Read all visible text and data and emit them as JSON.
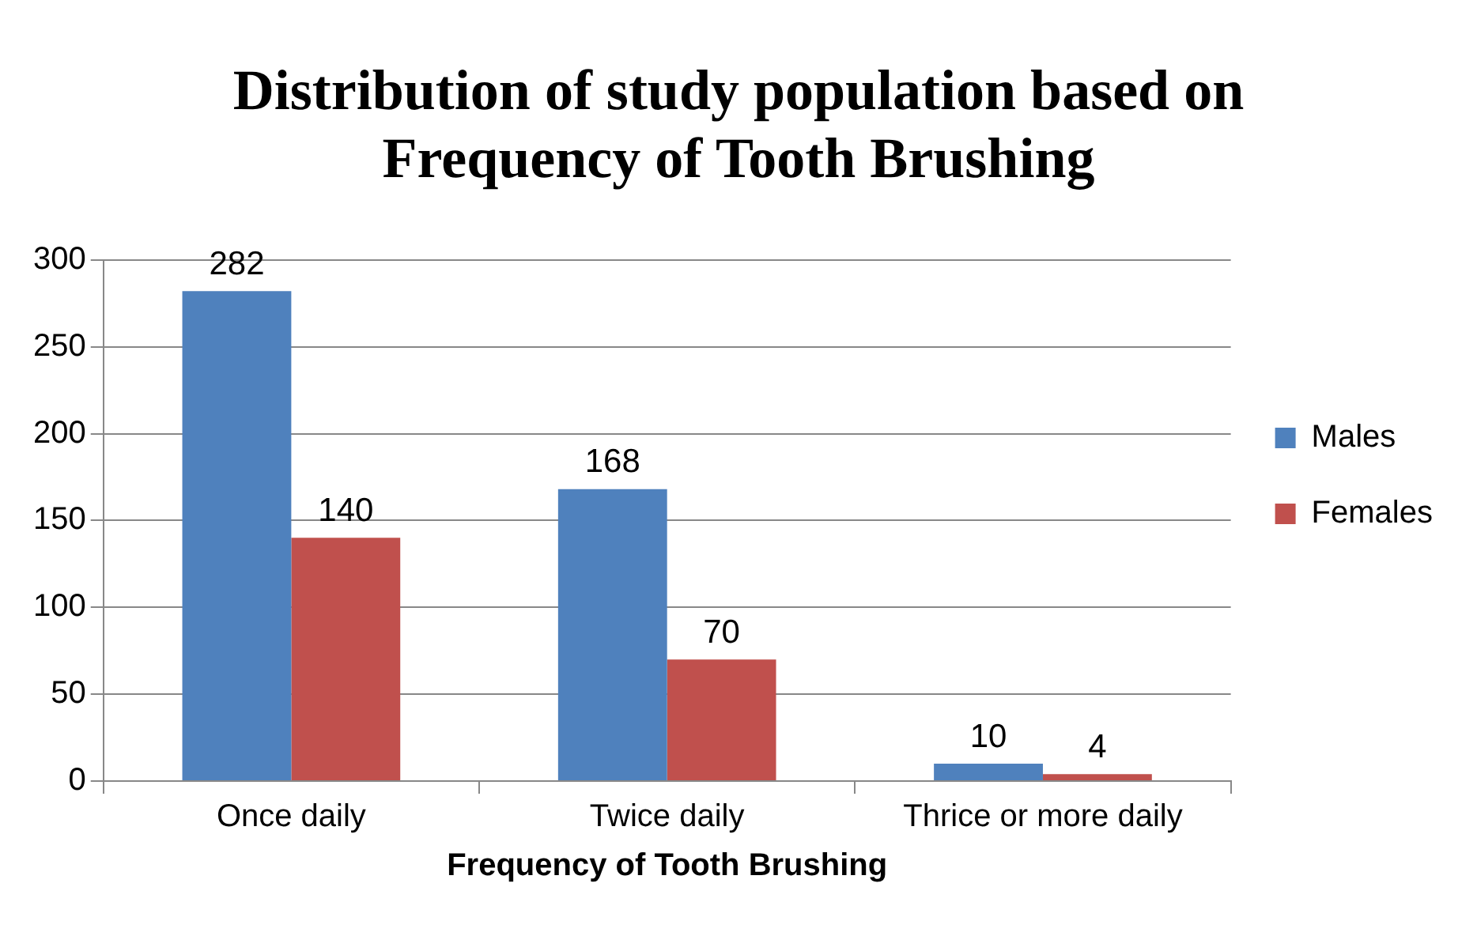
{
  "chart_data": {
    "type": "bar",
    "title": "Distribution of study population based on\nFrequency of Tooth Brushing",
    "xlabel": "Frequency of Tooth Brushing",
    "categories": [
      "Once daily",
      "Twice daily",
      "Thrice or more daily"
    ],
    "series": [
      {
        "name": "Males",
        "color": "#4f81bd",
        "values": [
          282,
          168,
          10
        ]
      },
      {
        "name": "Females",
        "color": "#c0504d",
        "values": [
          140,
          70,
          4
        ]
      }
    ],
    "ylim": [
      0,
      300
    ],
    "yticks": [
      0,
      50,
      100,
      150,
      200,
      250,
      300
    ],
    "grid": "y",
    "legend": "right",
    "data_labels": true
  }
}
